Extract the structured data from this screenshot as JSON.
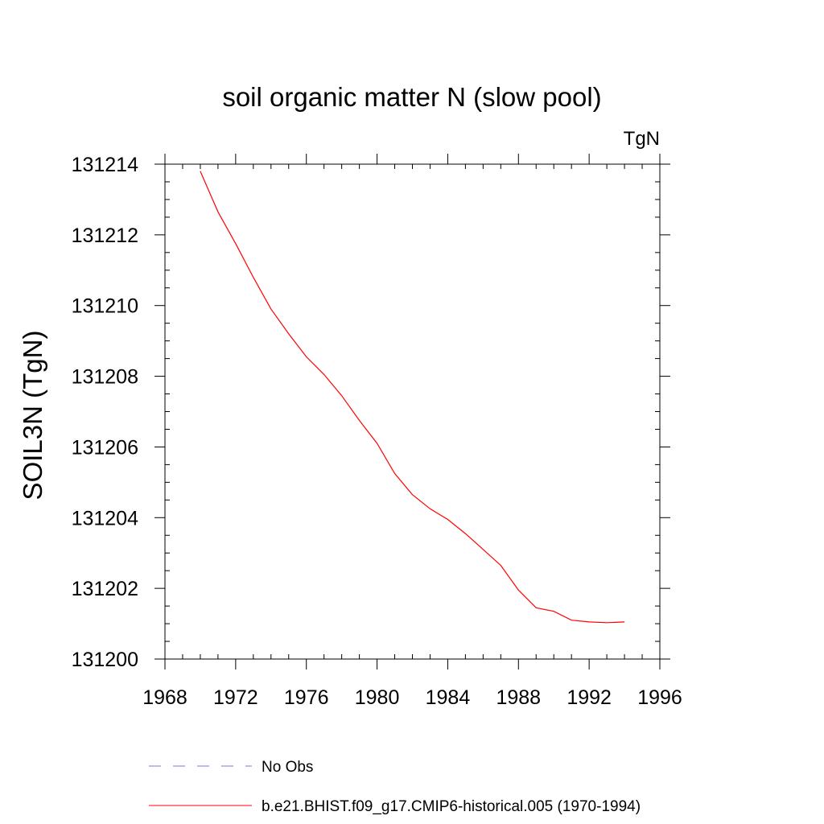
{
  "chart_data": {
    "type": "line",
    "title": "soil organic matter N (slow pool)",
    "units_label": "TgN",
    "xlabel": "",
    "ylabel": "SOIL3N  (TgN)",
    "xlim": [
      1968,
      1996
    ],
    "ylim": [
      131200,
      131214
    ],
    "xticks": [
      1968,
      1972,
      1976,
      1980,
      1984,
      1988,
      1992,
      1996
    ],
    "yticks": [
      131200,
      131202,
      131204,
      131206,
      131208,
      131210,
      131212,
      131214
    ],
    "grid": false,
    "legend_position": "bottom",
    "series": [
      {
        "name": "b.e21.BHIST.f09_g17.CMIP6-historical.005 (1970-1994)",
        "color": "#ff0000",
        "style": "solid",
        "x": [
          1970,
          1971,
          1972,
          1973,
          1974,
          1975,
          1976,
          1977,
          1978,
          1979,
          1980,
          1981,
          1982,
          1983,
          1984,
          1985,
          1986,
          1987,
          1988,
          1989,
          1990,
          1991,
          1992,
          1993,
          1994
        ],
        "y": [
          131213.8,
          131212.65,
          131211.75,
          131210.8,
          131209.9,
          131209.2,
          131208.55,
          131208.05,
          131207.45,
          131206.75,
          131206.1,
          131205.25,
          131204.65,
          131204.25,
          131203.95,
          131203.55,
          131203.1,
          131202.65,
          131201.95,
          131201.45,
          131201.35,
          131201.1,
          131201.05,
          131201.03,
          131201.05
        ]
      }
    ],
    "legend": [
      {
        "label": "No Obs",
        "color": "#7a7ad8",
        "style": "dashed"
      },
      {
        "label": "b.e21.BHIST.f09_g17.CMIP6-historical.005 (1970-1994)",
        "color": "#ff0000",
        "style": "solid"
      }
    ]
  }
}
